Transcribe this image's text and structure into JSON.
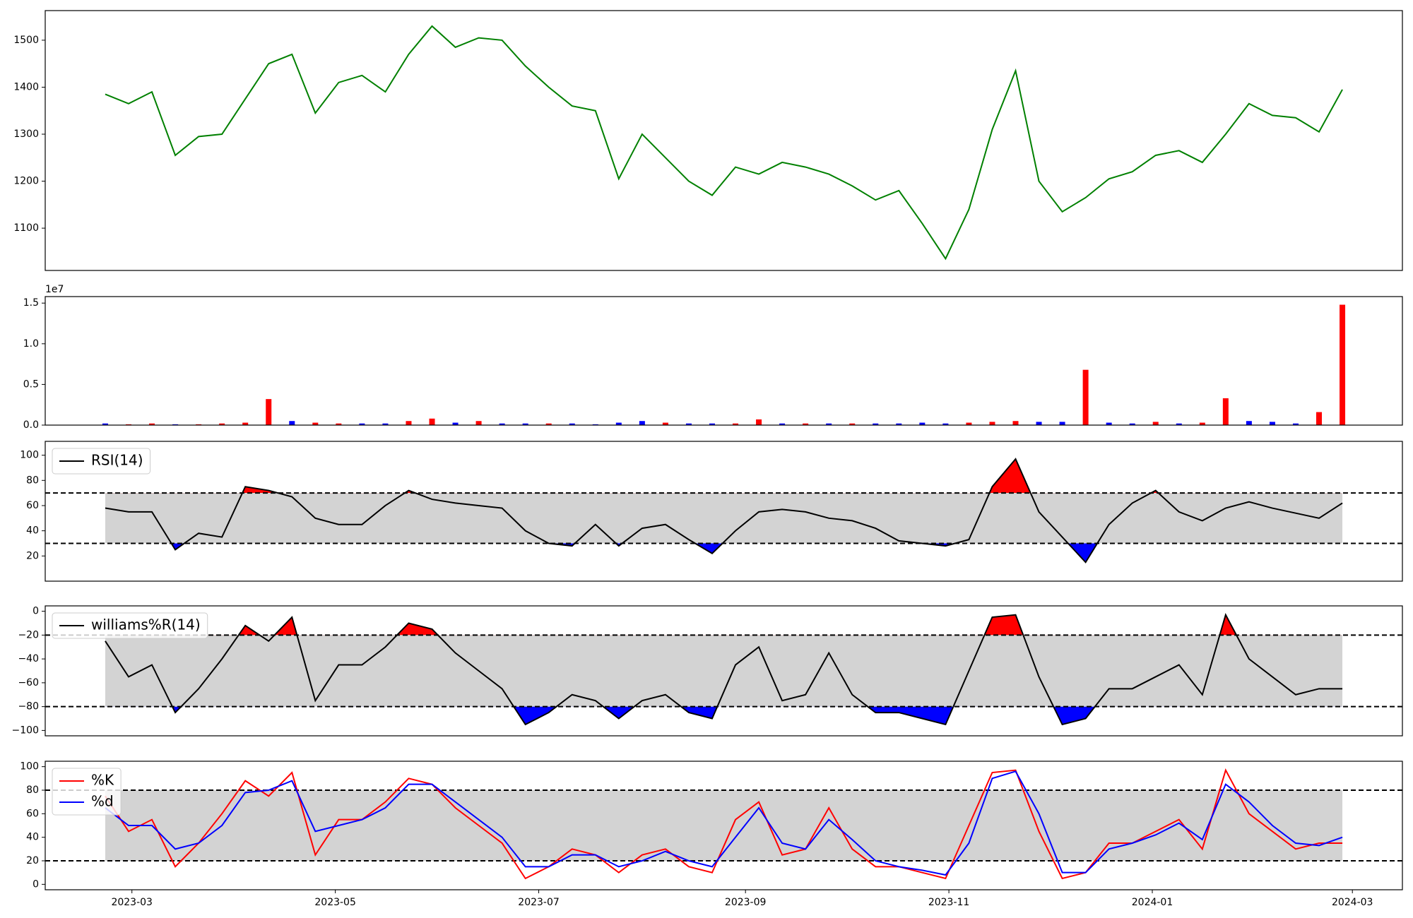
{
  "chart_data": [
    {
      "type": "line",
      "xlim": [
        33,
        440
      ],
      "ylim": [
        1010,
        1563
      ],
      "yticks": [
        1100,
        1200,
        1300,
        1400,
        1500
      ],
      "x": [
        51,
        58,
        65,
        72,
        79,
        86,
        93,
        100,
        107,
        114,
        121,
        128,
        135,
        142,
        149,
        156,
        163,
        170,
        177,
        184,
        191,
        198,
        205,
        212,
        219,
        226,
        233,
        240,
        247,
        254,
        261,
        268,
        275,
        282,
        289,
        296,
        303,
        310,
        317,
        324,
        331,
        338,
        345,
        352,
        359,
        366,
        373,
        380,
        387,
        394,
        401,
        408,
        415,
        422
      ],
      "series": [
        {
          "color": "green",
          "values": [
            1385,
            1365,
            1390,
            1255,
            1295,
            1300,
            1375,
            1450,
            1470,
            1345,
            1410,
            1425,
            1390,
            1470,
            1530,
            1485,
            1505,
            1500,
            1445,
            1400,
            1360,
            1350,
            1205,
            1300,
            1250,
            1200,
            1170,
            1230,
            1215,
            1240,
            1230,
            1215,
            1190,
            1160,
            1180,
            1110,
            1035,
            1140,
            1310,
            1435,
            1200,
            1135,
            1165,
            1205,
            1220,
            1255,
            1265,
            1240,
            1300,
            1365,
            1340,
            1335,
            1305,
            1395
          ]
        }
      ]
    },
    {
      "type": "bar",
      "xlim": [
        33,
        440
      ],
      "ylim": [
        0,
        1.58
      ],
      "offset_label": "1e7",
      "yticks": [
        {
          "value": 0,
          "label": "0.0"
        },
        0.5,
        {
          "value": 1,
          "label": "1.0"
        },
        1.5
      ],
      "x": [
        51,
        58,
        65,
        72,
        79,
        86,
        93,
        100,
        107,
        114,
        121,
        128,
        135,
        142,
        149,
        156,
        163,
        170,
        177,
        184,
        191,
        198,
        205,
        212,
        219,
        226,
        233,
        240,
        247,
        254,
        261,
        268,
        275,
        282,
        289,
        296,
        303,
        310,
        317,
        324,
        331,
        338,
        345,
        352,
        359,
        366,
        373,
        380,
        387,
        394,
        401,
        408,
        415,
        422
      ],
      "values": [
        0.02,
        0.01,
        0.02,
        0.01,
        0.01,
        0.02,
        0.03,
        0.32,
        0.05,
        0.03,
        0.02,
        0.02,
        0.02,
        0.05,
        0.08,
        0.03,
        0.05,
        0.02,
        0.02,
        0.02,
        0.02,
        0.01,
        0.03,
        0.05,
        0.03,
        0.02,
        0.02,
        0.02,
        0.07,
        0.02,
        0.02,
        0.02,
        0.02,
        0.02,
        0.02,
        0.03,
        0.02,
        0.03,
        0.04,
        0.05,
        0.04,
        0.04,
        0.68,
        0.03,
        0.02,
        0.04,
        0.02,
        0.03,
        0.33,
        0.05,
        0.04,
        0.02,
        0.16,
        1.48
      ],
      "colors": [
        "blue",
        "red",
        "red",
        "blue",
        "red",
        "red",
        "red",
        "red",
        "blue",
        "red",
        "red",
        "blue",
        "blue",
        "red",
        "red",
        "blue",
        "red",
        "blue",
        "blue",
        "red",
        "blue",
        "blue",
        "blue",
        "blue",
        "red",
        "blue",
        "blue",
        "red",
        "red",
        "blue",
        "red",
        "blue",
        "red",
        "blue",
        "blue",
        "blue",
        "blue",
        "red",
        "red",
        "red",
        "blue",
        "blue",
        "red",
        "blue",
        "blue",
        "red",
        "blue",
        "red",
        "red",
        "blue",
        "blue",
        "blue",
        "red",
        "red"
      ]
    },
    {
      "type": "oscillator",
      "xlim": [
        33,
        440
      ],
      "ylim": [
        0,
        111
      ],
      "yticks": [
        20,
        40,
        60,
        80,
        100
      ],
      "thresholds": [
        70,
        30
      ],
      "band_color": "#d3d3d3",
      "upper_fill": "red",
      "lower_fill": "blue",
      "legend": "upper left",
      "x": [
        51,
        58,
        65,
        72,
        79,
        86,
        93,
        100,
        107,
        114,
        121,
        128,
        135,
        142,
        149,
        156,
        163,
        170,
        177,
        184,
        191,
        198,
        205,
        212,
        219,
        226,
        233,
        240,
        247,
        254,
        261,
        268,
        275,
        282,
        289,
        296,
        303,
        310,
        317,
        324,
        331,
        338,
        345,
        352,
        359,
        366,
        373,
        380,
        387,
        394,
        401,
        408,
        415,
        422
      ],
      "series": [
        {
          "name": "RSI(14)",
          "color": "black",
          "values": [
            58,
            55,
            55,
            25,
            38,
            35,
            75,
            72,
            67,
            50,
            45,
            45,
            60,
            72,
            65,
            62,
            60,
            58,
            40,
            30,
            28,
            45,
            28,
            42,
            45,
            33,
            22,
            40,
            55,
            57,
            55,
            50,
            48,
            42,
            32,
            30,
            28,
            33,
            75,
            97,
            55,
            35,
            15,
            45,
            62,
            72,
            55,
            48,
            58,
            63,
            58,
            54,
            50,
            62
          ]
        }
      ]
    },
    {
      "type": "oscillator",
      "xlim": [
        33,
        440
      ],
      "ylim": [
        -104.5,
        4.5
      ],
      "yticks": [
        {
          "value": -100,
          "label": "−100"
        },
        {
          "value": -80,
          "label": "−80"
        },
        {
          "value": -60,
          "label": "−60"
        },
        {
          "value": -40,
          "label": "−40"
        },
        {
          "value": -20,
          "label": "−20"
        },
        0
      ],
      "thresholds": [
        -20,
        -80
      ],
      "band_color": "#d3d3d3",
      "upper_fill": "red",
      "lower_fill": "blue",
      "legend": "upper left",
      "x": [
        51,
        58,
        65,
        72,
        79,
        86,
        93,
        100,
        107,
        114,
        121,
        128,
        135,
        142,
        149,
        156,
        163,
        170,
        177,
        184,
        191,
        198,
        205,
        212,
        219,
        226,
        233,
        240,
        247,
        254,
        261,
        268,
        275,
        282,
        289,
        296,
        303,
        310,
        317,
        324,
        331,
        338,
        345,
        352,
        359,
        366,
        373,
        380,
        387,
        394,
        401,
        408,
        415,
        422
      ],
      "series": [
        {
          "name": "williams%R(14)",
          "color": "black",
          "values": [
            -25,
            -55,
            -45,
            -85,
            -65,
            -40,
            -12,
            -25,
            -5,
            -75,
            -45,
            -45,
            -30,
            -10,
            -15,
            -35,
            -50,
            -65,
            -95,
            -85,
            -70,
            -75,
            -90,
            -75,
            -70,
            -85,
            -90,
            -45,
            -30,
            -75,
            -70,
            -35,
            -70,
            -85,
            -85,
            -90,
            -95,
            -50,
            -5,
            -3,
            -55,
            -95,
            -90,
            -65,
            -65,
            -55,
            -45,
            -70,
            -3,
            -40,
            -55,
            -70,
            -65,
            -65
          ]
        }
      ]
    },
    {
      "type": "oscillator",
      "xlim": [
        33,
        440
      ],
      "ylim": [
        -4.6,
        104.6
      ],
      "yticks": [
        0,
        20,
        40,
        60,
        80,
        100
      ],
      "thresholds": [
        80,
        20
      ],
      "band_color": "#d3d3d3",
      "legend": "upper left",
      "xticks": [
        {
          "value": 59,
          "label": "2023-03"
        },
        {
          "value": 120,
          "label": "2023-05"
        },
        {
          "value": 181,
          "label": "2023-07"
        },
        {
          "value": 243,
          "label": "2023-09"
        },
        {
          "value": 304,
          "label": "2023-11"
        },
        {
          "value": 365,
          "label": "2024-01"
        },
        {
          "value": 425,
          "label": "2024-03"
        }
      ],
      "x": [
        51,
        58,
        65,
        72,
        79,
        86,
        93,
        100,
        107,
        114,
        121,
        128,
        135,
        142,
        149,
        156,
        163,
        170,
        177,
        184,
        191,
        198,
        205,
        212,
        219,
        226,
        233,
        240,
        247,
        254,
        261,
        268,
        275,
        282,
        289,
        296,
        303,
        310,
        317,
        324,
        331,
        338,
        345,
        352,
        359,
        366,
        373,
        380,
        387,
        394,
        401,
        408,
        415,
        422
      ],
      "series": [
        {
          "name": "%K",
          "color": "red",
          "values": [
            75,
            45,
            55,
            15,
            35,
            60,
            88,
            75,
            95,
            25,
            55,
            55,
            70,
            90,
            85,
            65,
            50,
            35,
            5,
            15,
            30,
            25,
            10,
            25,
            30,
            15,
            10,
            55,
            70,
            25,
            30,
            65,
            30,
            15,
            15,
            10,
            5,
            50,
            95,
            97,
            45,
            5,
            10,
            35,
            35,
            45,
            55,
            30,
            97,
            60,
            45,
            30,
            35,
            35
          ]
        },
        {
          "name": "%d",
          "color": "blue",
          "values": [
            65,
            50,
            50,
            30,
            35,
            50,
            78,
            80,
            88,
            45,
            50,
            55,
            65,
            85,
            85,
            70,
            55,
            40,
            15,
            15,
            25,
            25,
            15,
            20,
            28,
            20,
            15,
            40,
            65,
            35,
            30,
            55,
            38,
            20,
            15,
            12,
            8,
            35,
            90,
            96,
            60,
            10,
            10,
            30,
            35,
            42,
            52,
            38,
            85,
            70,
            50,
            35,
            33,
            40
          ]
        }
      ]
    }
  ]
}
